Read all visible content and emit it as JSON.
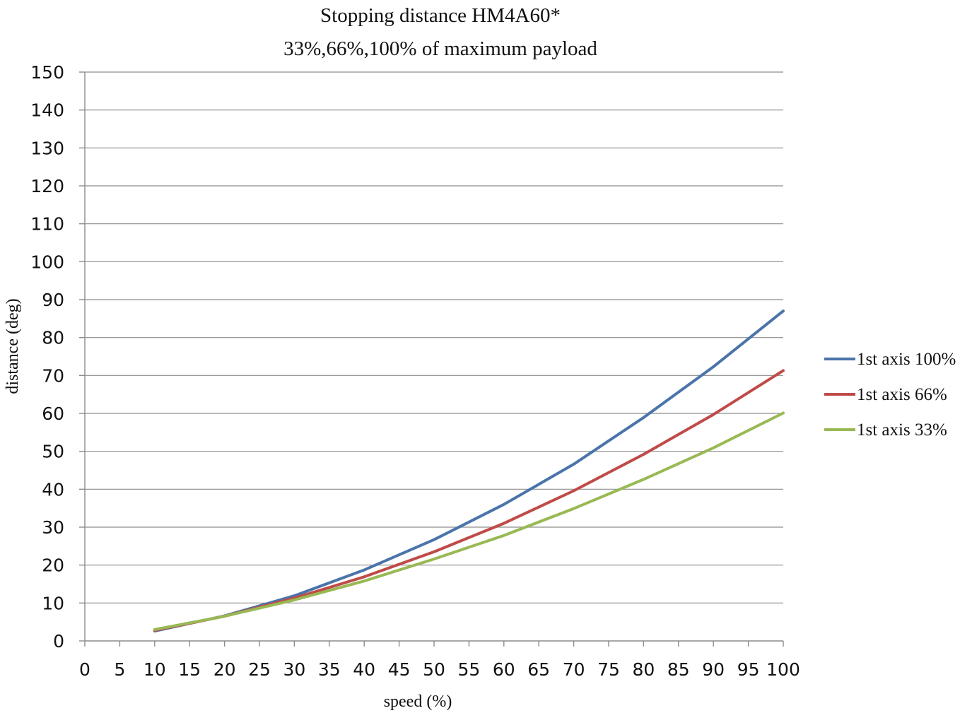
{
  "chart_data": {
    "type": "line",
    "title": "Stopping distance HM4A60*",
    "subtitle": "33%,66%,100% of maximum payload",
    "xlabel": "speed (%)",
    "ylabel": "distance (deg)",
    "xlim": [
      0,
      100
    ],
    "ylim": [
      0,
      150
    ],
    "x_ticks": [
      0,
      5,
      10,
      15,
      20,
      25,
      30,
      35,
      40,
      45,
      50,
      55,
      60,
      65,
      70,
      75,
      80,
      85,
      90,
      95,
      100
    ],
    "y_ticks": [
      0,
      10,
      20,
      30,
      40,
      50,
      60,
      70,
      80,
      90,
      100,
      110,
      120,
      130,
      140,
      150
    ],
    "grid": "horizontal",
    "legend_position": "right",
    "x": [
      10,
      20,
      30,
      40,
      50,
      60,
      70,
      80,
      90,
      100
    ],
    "series": [
      {
        "name": "1st axis 100%",
        "color": "#4a74aa",
        "values": [
          2.6,
          6.6,
          11.9,
          18.7,
          26.7,
          36.0,
          46.6,
          58.9,
          72.3,
          87.0
        ]
      },
      {
        "name": "1st axis 66%",
        "color": "#bf4b48",
        "values": [
          2.8,
          6.5,
          11.3,
          16.9,
          23.5,
          31.0,
          39.6,
          49.2,
          59.7,
          71.3
        ]
      },
      {
        "name": "1st axis 33%",
        "color": "#98b954",
        "values": [
          3.0,
          6.5,
          10.8,
          15.8,
          21.6,
          27.8,
          34.9,
          42.6,
          50.9,
          60.1
        ]
      }
    ]
  }
}
